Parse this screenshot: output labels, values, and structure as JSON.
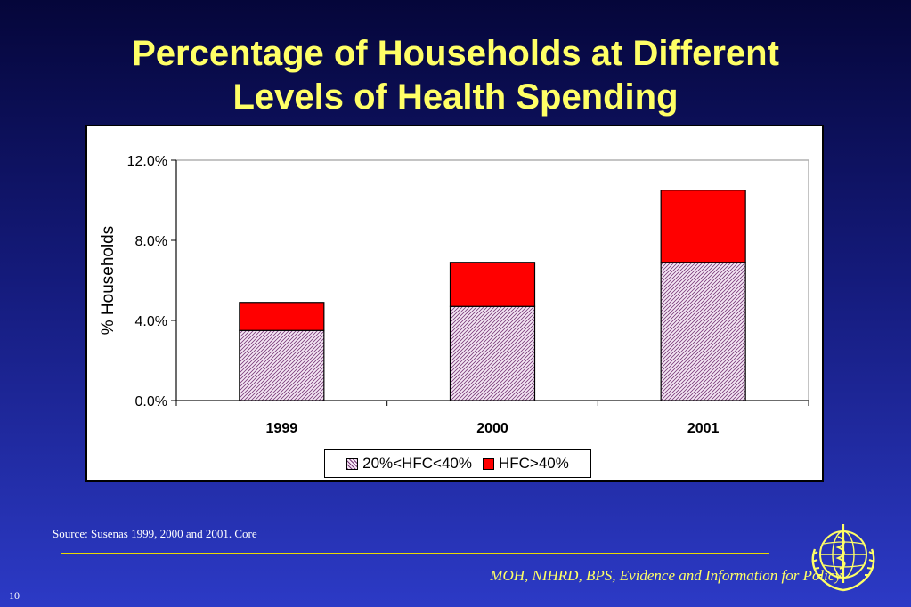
{
  "slide": {
    "title_line1": "Percentage of Households at Different",
    "title_line2": "Levels of Health Spending",
    "source": "Source: Susenas 1999, 2000 and 2001. Core",
    "footer": "MOH, NIHRD, BPS, Evidence and Information for Policy",
    "page_number": "10",
    "logo_icon": "who-emblem-icon"
  },
  "colors": {
    "title": "#ffff66",
    "series1_hatch": "#7a3c7a",
    "series2": "#ff0000"
  },
  "chart_data": {
    "type": "bar",
    "stacked": true,
    "categories": [
      "1999",
      "2000",
      "2001"
    ],
    "series": [
      {
        "name": "20%<HFC<40%",
        "values": [
          3.5,
          4.7,
          6.9
        ],
        "fill": "hatch"
      },
      {
        "name": "HFC>40%",
        "values": [
          1.4,
          2.2,
          3.6
        ],
        "fill": "#ff0000"
      }
    ],
    "ylabel": "% Households",
    "ylim": [
      0,
      12
    ],
    "yticks": [
      {
        "value": 0,
        "label": "0.0%"
      },
      {
        "value": 4,
        "label": "4.0%"
      },
      {
        "value": 8,
        "label": "8.0%"
      },
      {
        "value": 12,
        "label": "12.0%"
      }
    ],
    "legend_position": "bottom",
    "grid": false
  }
}
